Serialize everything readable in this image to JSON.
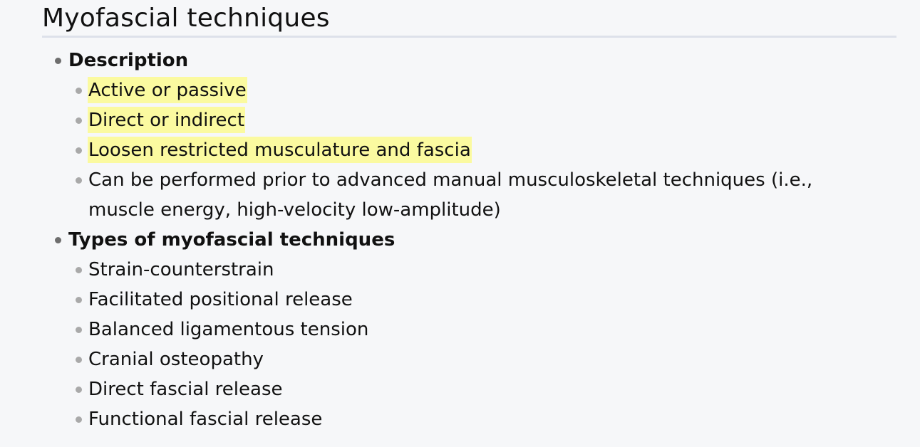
{
  "section": {
    "title": "Myofascial techniques",
    "groups": [
      {
        "label": "Description",
        "items": [
          {
            "text": "Active or passive",
            "highlighted": true
          },
          {
            "text": "Direct or indirect",
            "highlighted": true
          },
          {
            "text": "Loosen restricted musculature and fascia",
            "highlighted": true
          },
          {
            "text": "Can be performed prior to advanced manual musculoskeletal techniques (i.e., muscle energy, high-velocity low-amplitude)",
            "highlighted": false
          }
        ]
      },
      {
        "label": "Types of myofascial techniques",
        "items": [
          {
            "text": "Strain-counterstrain",
            "highlighted": false
          },
          {
            "text": "Facilitated positional release",
            "highlighted": false
          },
          {
            "text": "Balanced ligamentous tension",
            "highlighted": false
          },
          {
            "text": "Cranial osteopathy",
            "highlighted": false
          },
          {
            "text": "Direct fascial release",
            "highlighted": false
          },
          {
            "text": "Functional fascial release",
            "highlighted": false
          }
        ]
      }
    ]
  },
  "colors": {
    "highlight": "#fbfaa0",
    "background": "#f6f7f9",
    "rule": "#dde1ea"
  }
}
